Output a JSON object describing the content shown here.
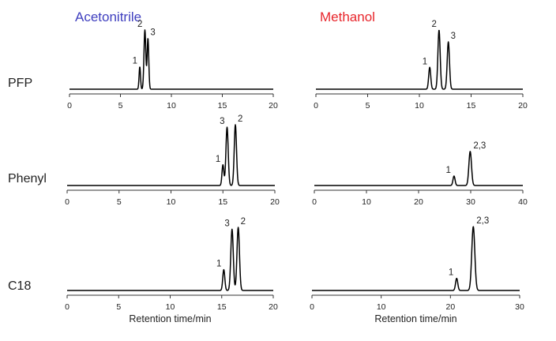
{
  "colors": {
    "acetonitrile": "#3f3fbf",
    "methanol": "#e8262c",
    "trace": "#000000"
  },
  "chart_data": [
    {
      "type": "line",
      "column_title": "Acetonitrile",
      "row_label": "PFP",
      "xlim": [
        0,
        20
      ],
      "xticks": [
        0,
        5,
        10,
        15,
        20
      ],
      "xlabel": "",
      "peaks": [
        {
          "label": "1",
          "x": 6.9,
          "height": 0.38,
          "width": 0.07
        },
        {
          "label": "2",
          "x": 7.4,
          "height": 1.0,
          "width": 0.09
        },
        {
          "label": "3",
          "x": 7.7,
          "height": 0.86,
          "width": 0.08
        }
      ]
    },
    {
      "type": "line",
      "column_title": "Methanol",
      "row_label": "",
      "xlim": [
        0,
        20
      ],
      "xticks": [
        0,
        5,
        10,
        15,
        20
      ],
      "xlabel": "",
      "peaks": [
        {
          "label": "1",
          "x": 11.0,
          "height": 0.37,
          "width": 0.1
        },
        {
          "label": "2",
          "x": 11.9,
          "height": 1.0,
          "width": 0.11
        },
        {
          "label": "3",
          "x": 12.8,
          "height": 0.8,
          "width": 0.11
        }
      ]
    },
    {
      "type": "line",
      "column_title": "",
      "row_label": "Phenyl",
      "xlim": [
        0,
        20
      ],
      "xticks": [
        0,
        5,
        10,
        15,
        20
      ],
      "xlabel": "",
      "peaks": [
        {
          "label": "1",
          "x": 15.0,
          "height": 0.34,
          "width": 0.09
        },
        {
          "label": "3",
          "x": 15.4,
          "height": 0.96,
          "width": 0.11
        },
        {
          "label": "2",
          "x": 16.2,
          "height": 1.0,
          "width": 0.11
        }
      ]
    },
    {
      "type": "line",
      "column_title": "",
      "row_label": "",
      "xlim": [
        0,
        40
      ],
      "xticks": [
        0,
        10,
        20,
        30,
        40
      ],
      "xlabel": "",
      "peaks": [
        {
          "label": "1",
          "x": 26.8,
          "height": 0.2,
          "width": 0.2
        },
        {
          "label": "2,3",
          "x": 29.9,
          "height": 0.72,
          "width": 0.25
        }
      ]
    },
    {
      "type": "line",
      "column_title": "",
      "row_label": "C18",
      "xlim": [
        0,
        20
      ],
      "xticks": [
        0,
        5,
        10,
        15,
        20
      ],
      "xlabel": "Retention time/min",
      "peaks": [
        {
          "label": "1",
          "x": 15.2,
          "height": 0.33,
          "width": 0.1
        },
        {
          "label": "3",
          "x": 16.0,
          "height": 0.97,
          "width": 0.12
        },
        {
          "label": "2",
          "x": 16.6,
          "height": 1.0,
          "width": 0.12
        }
      ]
    },
    {
      "type": "line",
      "column_title": "",
      "row_label": "",
      "xlim": [
        0,
        30
      ],
      "xticks": [
        0,
        10,
        20,
        30
      ],
      "xlabel": "Retention time/min",
      "peaks": [
        {
          "label": "1",
          "x": 20.9,
          "height": 0.19,
          "width": 0.16
        },
        {
          "label": "2,3",
          "x": 23.3,
          "height": 1.0,
          "width": 0.22
        }
      ]
    }
  ]
}
